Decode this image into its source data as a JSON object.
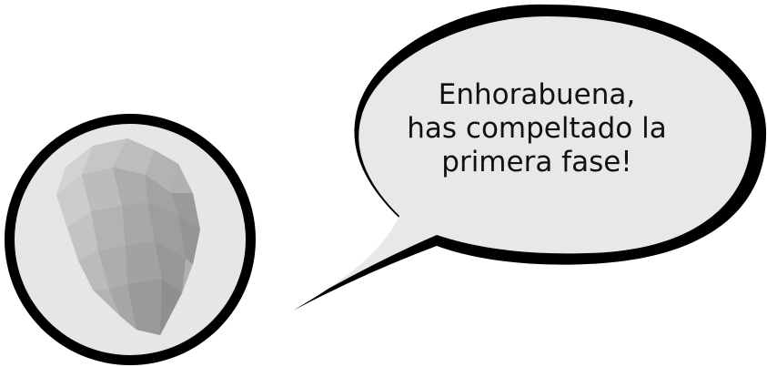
{
  "dialog": {
    "lines": [
      "Enhorabuena,",
      "has compeltado la",
      "primera fase!"
    ]
  },
  "avatar": {
    "icon": "low-poly-head-icon"
  },
  "colors": {
    "outline": "#000000",
    "bubble_fill": "#e8e8e8",
    "avatar_bg": "#e6e6e6",
    "text": "#111111"
  }
}
